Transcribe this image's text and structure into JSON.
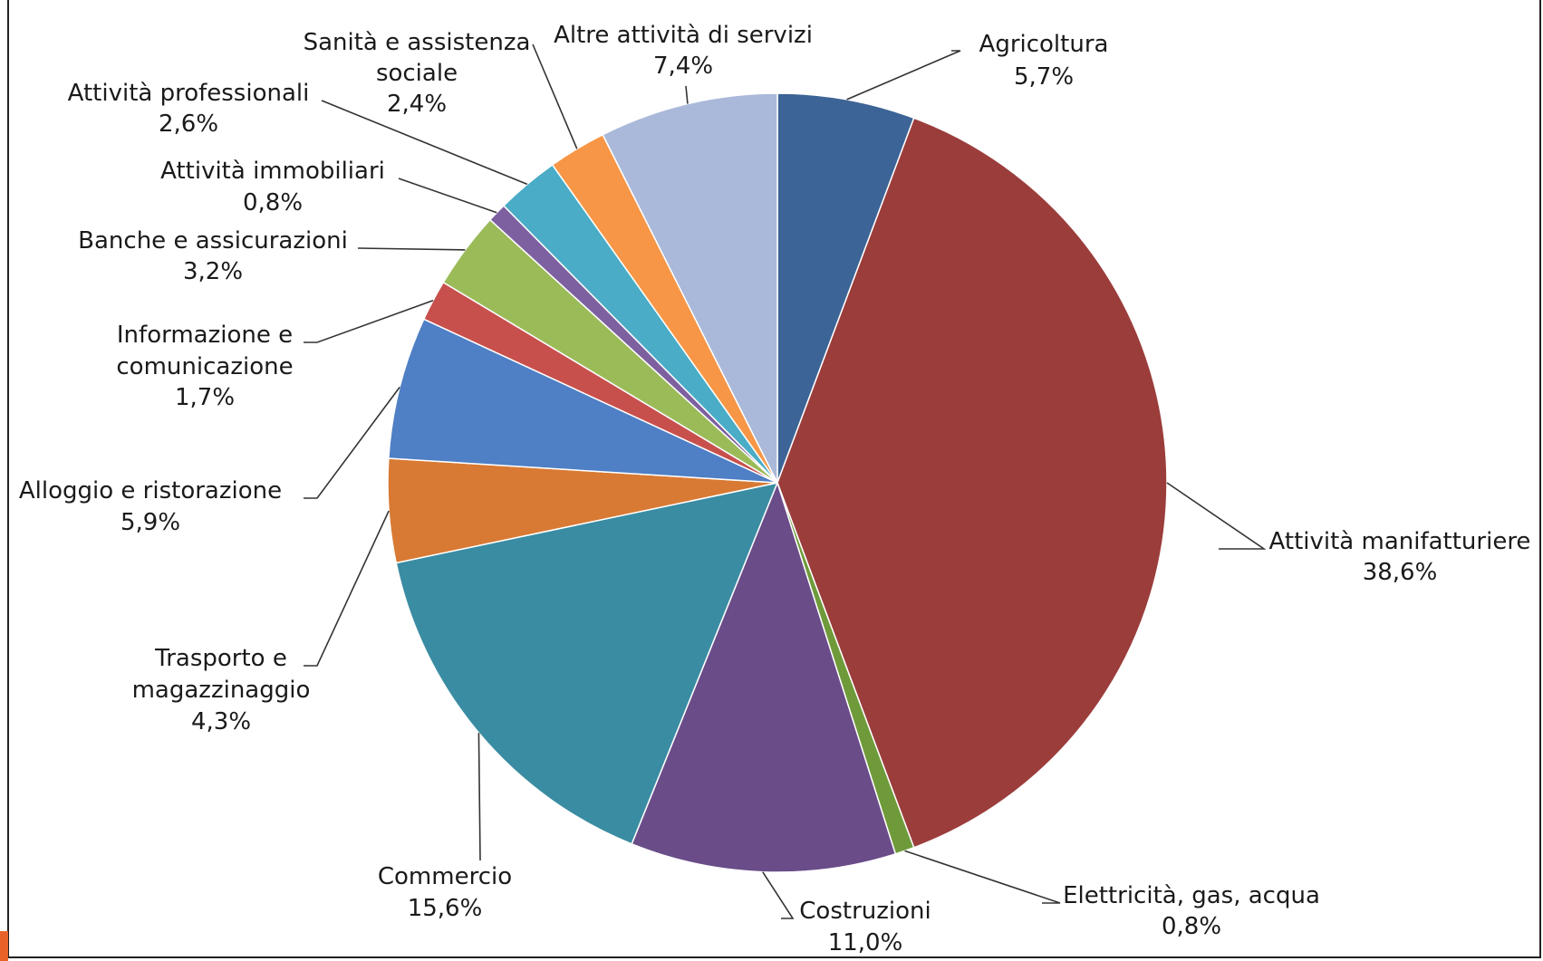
{
  "chart_data": {
    "type": "pie",
    "slices": [
      {
        "label": "Agricoltura",
        "value": 5.7,
        "value_text": "5,7%",
        "color": "#3d6496"
      },
      {
        "label": "Attività manifatturiere",
        "value": 38.6,
        "value_text": "38,6%",
        "color": "#9b3d3b"
      },
      {
        "label": "Elettricità, gas, acqua",
        "value": 0.8,
        "value_text": "0,8%",
        "color": "#6f9a3a"
      },
      {
        "label": "Costruzioni",
        "value": 11.0,
        "value_text": "11,0%",
        "color": "#6a4c88"
      },
      {
        "label": "Commercio",
        "value": 15.6,
        "value_text": "15,6%",
        "color": "#3a8ca2"
      },
      {
        "label": "Trasporto e magazzinaggio",
        "value": 4.3,
        "value_text": "4,3%",
        "color": "#d87a34"
      },
      {
        "label": "Alloggio e ristorazione",
        "value": 5.9,
        "value_text": "5,9%",
        "color": "#4f7fc4"
      },
      {
        "label": "Informazione e comunicazione",
        "value": 1.7,
        "value_text": "1,7%",
        "color": "#c8504c"
      },
      {
        "label": "Banche e assicurazioni",
        "value": 3.2,
        "value_text": "3,2%",
        "color": "#9bbb59"
      },
      {
        "label": "Attività immobiliari",
        "value": 0.8,
        "value_text": "0,8%",
        "color": "#7d60a0"
      },
      {
        "label": "Attività professionali",
        "value": 2.6,
        "value_text": "2,6%",
        "color": "#4aacc6"
      },
      {
        "label": "Sanità e assistenza sociale",
        "value": 2.4,
        "value_text": "2,4%",
        "color": "#f79646"
      },
      {
        "label": "Altre attività di servizi",
        "value": 7.4,
        "value_text": "7,4%",
        "color": "#aab9d9"
      }
    ]
  }
}
